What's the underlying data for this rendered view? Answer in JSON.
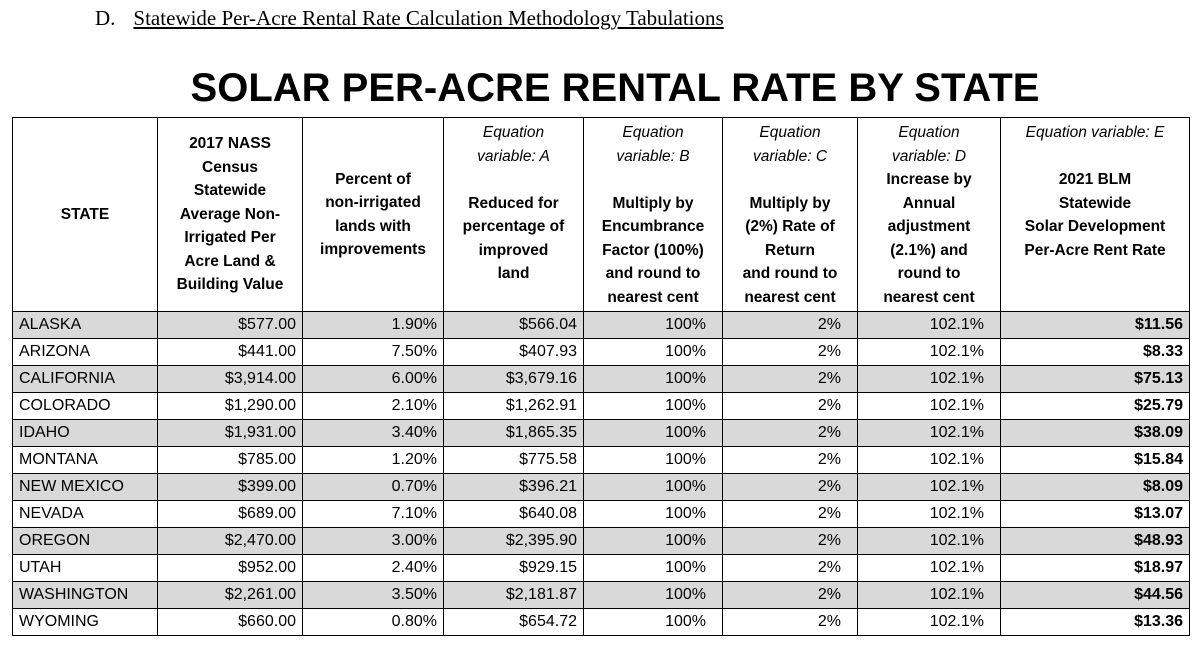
{
  "header": {
    "label": "D.",
    "title": "Statewide Per-Acre Rental Rate Calculation Methodology Tabulations"
  },
  "title": "SOLAR PER-ACRE RENTAL RATE BY STATE",
  "table": {
    "columns": [
      {
        "lines": [
          "STATE"
        ]
      },
      {
        "lines": [
          "2017 NASS",
          "Census",
          "Statewide",
          "Average Non-",
          "Irrigated Per",
          "Acre Land &",
          "Building Value"
        ]
      },
      {
        "lines": [
          "Percent of",
          "non-irrigated",
          "lands with",
          "improvements"
        ]
      },
      {
        "variable": [
          "Equation",
          "variable: A"
        ],
        "lines": [
          "Reduced for",
          "percentage of",
          "improved",
          "land"
        ]
      },
      {
        "variable": [
          "Equation",
          "variable: B"
        ],
        "lines": [
          "Multiply by",
          "Encumbrance",
          "Factor (100%)",
          "and round to",
          "nearest cent"
        ]
      },
      {
        "variable": [
          "Equation",
          "variable: C"
        ],
        "lines": [
          "Multiply by",
          "(2%) Rate of",
          "Return",
          "and round to",
          "nearest cent"
        ]
      },
      {
        "variable": [
          "Equation",
          "variable: D"
        ],
        "lines": [
          "Increase by",
          "Annual",
          "adjustment",
          "(2.1%) and",
          "round to",
          "nearest cent"
        ]
      },
      {
        "variable": [
          "Equation variable: E"
        ],
        "lines": [
          "2021 BLM",
          "Statewide",
          "Solar Development",
          "Per-Acre Rent Rate"
        ]
      }
    ],
    "rows": [
      [
        "ALASKA",
        "$577.00",
        "1.90%",
        "$566.04",
        "100%",
        "2%",
        "102.1%",
        "$11.56"
      ],
      [
        "ARIZONA",
        "$441.00",
        "7.50%",
        "$407.93",
        "100%",
        "2%",
        "102.1%",
        "$8.33"
      ],
      [
        "CALIFORNIA",
        "$3,914.00",
        "6.00%",
        "$3,679.16",
        "100%",
        "2%",
        "102.1%",
        "$75.13"
      ],
      [
        "COLORADO",
        "$1,290.00",
        "2.10%",
        "$1,262.91",
        "100%",
        "2%",
        "102.1%",
        "$25.79"
      ],
      [
        "IDAHO",
        "$1,931.00",
        "3.40%",
        "$1,865.35",
        "100%",
        "2%",
        "102.1%",
        "$38.09"
      ],
      [
        "MONTANA",
        "$785.00",
        "1.20%",
        "$775.58",
        "100%",
        "2%",
        "102.1%",
        "$15.84"
      ],
      [
        "NEW MEXICO",
        "$399.00",
        "0.70%",
        "$396.21",
        "100%",
        "2%",
        "102.1%",
        "$8.09"
      ],
      [
        "NEVADA",
        "$689.00",
        "7.10%",
        "$640.08",
        "100%",
        "2%",
        "102.1%",
        "$13.07"
      ],
      [
        "OREGON",
        "$2,470.00",
        "3.00%",
        "$2,395.90",
        "100%",
        "2%",
        "102.1%",
        "$48.93"
      ],
      [
        "UTAH",
        "$952.00",
        "2.40%",
        "$929.15",
        "100%",
        "2%",
        "102.1%",
        "$18.97"
      ],
      [
        "WASHINGTON",
        "$2,261.00",
        "3.50%",
        "$2,181.87",
        "100%",
        "2%",
        "102.1%",
        "$44.56"
      ],
      [
        "WYOMING",
        "$660.00",
        "0.80%",
        "$654.72",
        "100%",
        "2%",
        "102.1%",
        "$13.36"
      ]
    ]
  }
}
